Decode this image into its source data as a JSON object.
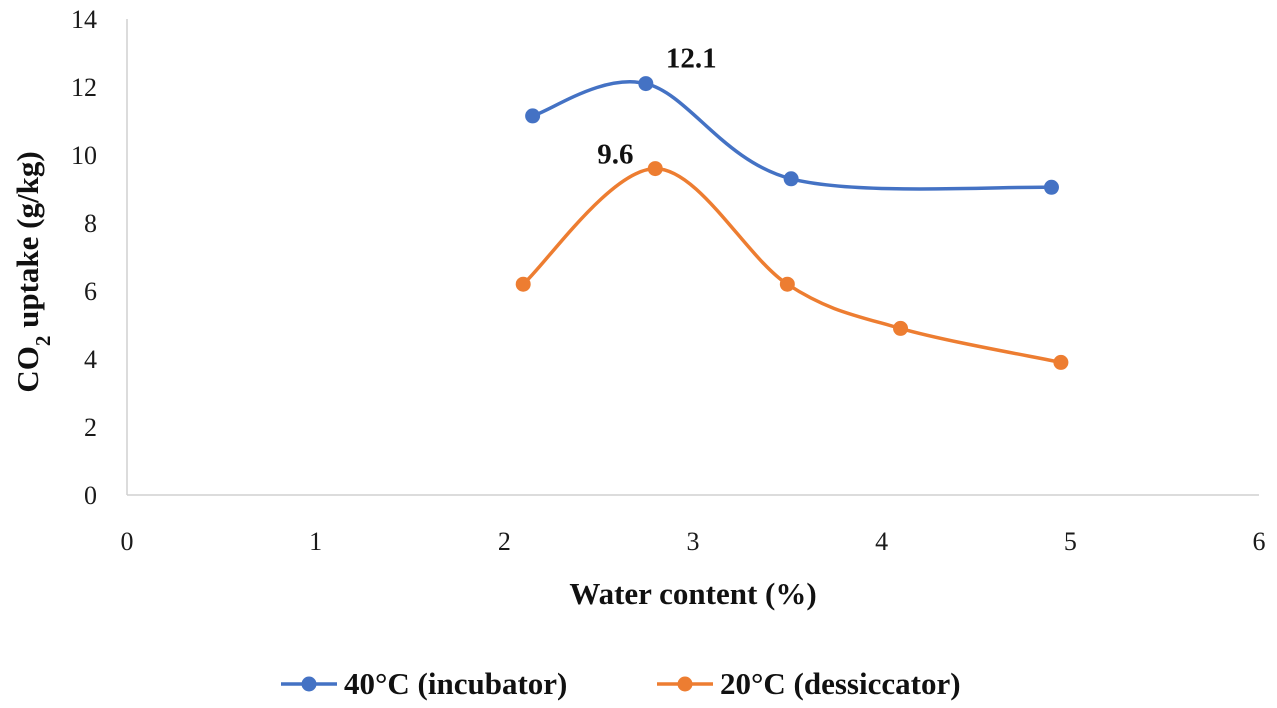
{
  "chart_data": {
    "type": "scatter",
    "title": "",
    "xlabel": "Water content (%)",
    "ylabel_main": "CO",
    "ylabel_sub": "2",
    "ylabel_rest": " uptake (g/kg)",
    "xlim": [
      0,
      6
    ],
    "ylim": [
      0,
      14
    ],
    "xticks": [
      "0",
      "1",
      "2",
      "3",
      "4",
      "5",
      "6"
    ],
    "yticks": [
      "0",
      "2",
      "4",
      "6",
      "8",
      "10",
      "12",
      "14"
    ],
    "grid": false,
    "legend_position": "bottom",
    "series": [
      {
        "name": "40°C (incubator)",
        "color": "#4472C4",
        "x": [
          2.15,
          2.75,
          3.52,
          4.9
        ],
        "y": [
          11.15,
          12.1,
          9.3,
          9.05
        ]
      },
      {
        "name": "20°C (dessiccator)",
        "color": "#ED7D31",
        "x": [
          2.1,
          2.8,
          3.5,
          4.1,
          4.95
        ],
        "y": [
          6.2,
          9.6,
          6.2,
          4.9,
          3.9
        ]
      }
    ],
    "annotations": [
      {
        "text": "12.1",
        "series": 0,
        "point": 1
      },
      {
        "text": "9.6",
        "series": 1,
        "point": 1
      }
    ]
  }
}
